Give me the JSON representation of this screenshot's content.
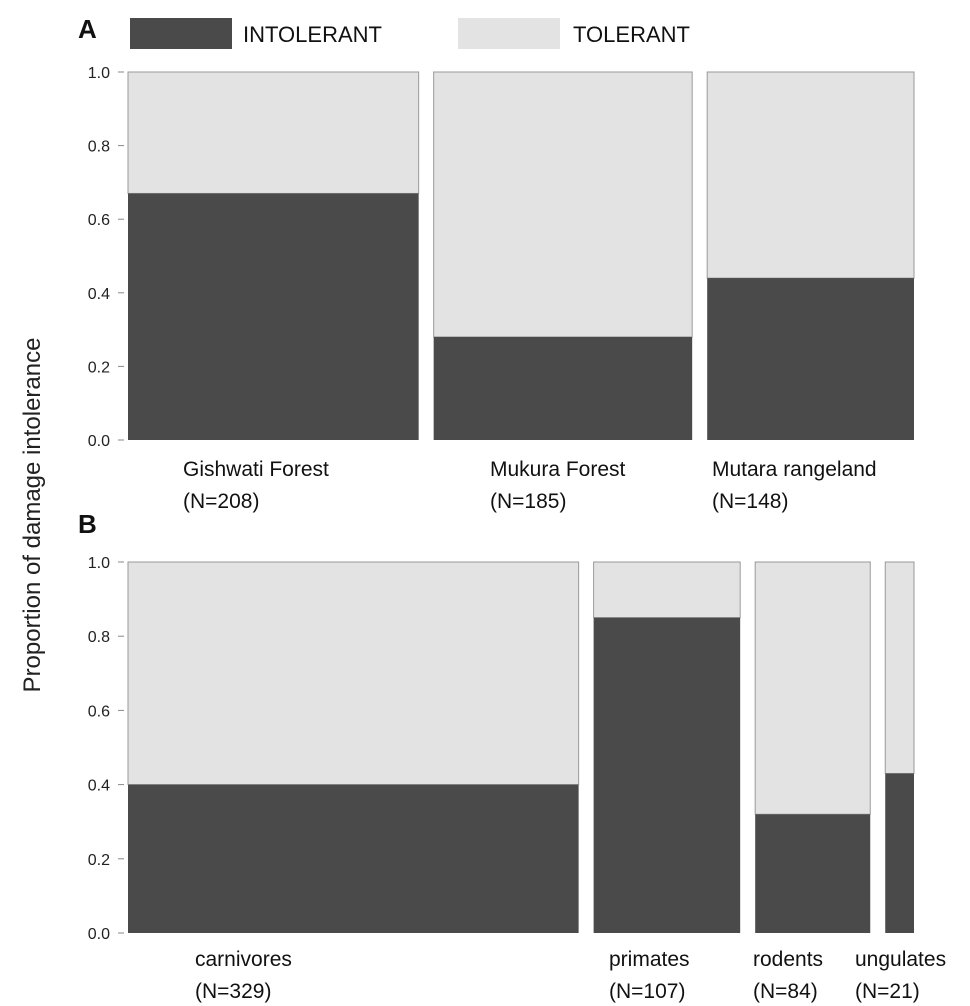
{
  "legend": {
    "intolerant_label": "INTOLERANT",
    "tolerant_label": "TOLERANT"
  },
  "colors": {
    "intolerant": "#4a4a4a",
    "tolerant": "#e3e3e3",
    "outline": "#9a9a9a"
  },
  "ylabel": "Proportion of damage intolerance",
  "chart_data": [
    {
      "panel": "A",
      "type": "bar",
      "subtype": "mosaic (stacked proportion, widths proportional to N)",
      "ylim": [
        0,
        1
      ],
      "yticks": [
        "0.0",
        "0.2",
        "0.4",
        "0.6",
        "0.8",
        "1.0"
      ],
      "categories": [
        "Gishwati Forest",
        "Mukura Forest",
        "Mutara rangeland"
      ],
      "n_labels": [
        "(N=208)",
        "(N=185)",
        "(N=148)"
      ],
      "n": [
        208,
        185,
        148
      ],
      "series": [
        {
          "name": "INTOLERANT",
          "values": [
            0.67,
            0.28,
            0.44
          ]
        },
        {
          "name": "TOLERANT",
          "values": [
            0.33,
            0.72,
            0.56
          ]
        }
      ]
    },
    {
      "panel": "B",
      "type": "bar",
      "subtype": "mosaic (stacked proportion, widths proportional to N)",
      "ylim": [
        0,
        1
      ],
      "yticks": [
        "0.0",
        "0.2",
        "0.4",
        "0.6",
        "0.8",
        "1.0"
      ],
      "categories": [
        "carnivores",
        "primates",
        "rodents",
        "ungulates"
      ],
      "n_labels": [
        "(N=329)",
        "(N=107)",
        "(N=84)",
        "(N=21)"
      ],
      "n": [
        329,
        107,
        84,
        21
      ],
      "series": [
        {
          "name": "INTOLERANT",
          "values": [
            0.4,
            0.85,
            0.32,
            0.43
          ]
        },
        {
          "name": "TOLERANT",
          "values": [
            0.6,
            0.15,
            0.68,
            0.57
          ]
        }
      ]
    }
  ]
}
